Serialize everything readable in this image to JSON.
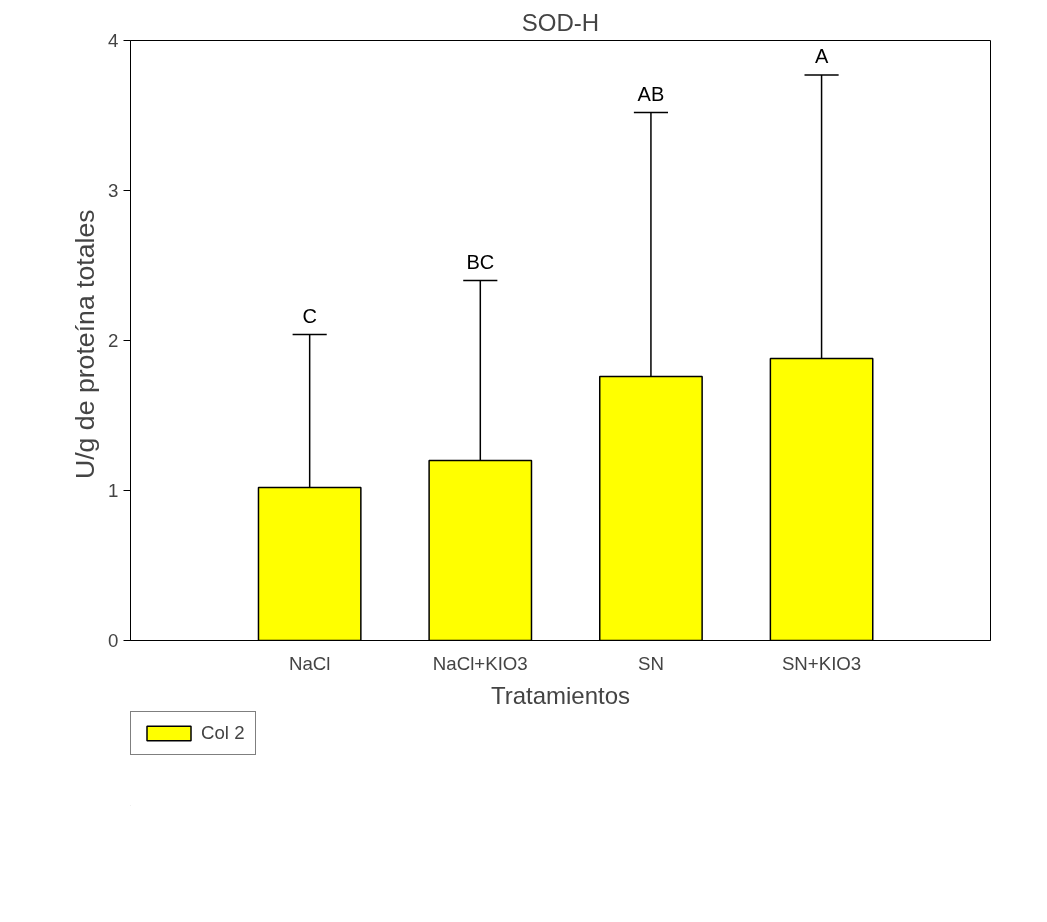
{
  "chart_data": {
    "type": "bar",
    "title": "SOD-H",
    "xlabel": "Tratamientos",
    "ylabel": "U/g de proteína  totales",
    "categories": [
      "NaCl",
      "NaCl+KIO3",
      "SN",
      "SN+KIO3"
    ],
    "series": [
      {
        "name": "Col 2",
        "color": "#ffff00",
        "values": [
          1.02,
          1.2,
          1.76,
          1.88
        ],
        "errors": [
          [
            1.02,
            2.04
          ],
          [
            1.2,
            2.4
          ],
          [
            1.76,
            3.52
          ],
          [
            1.88,
            3.77
          ]
        ]
      }
    ],
    "ylim": [
      0,
      4
    ],
    "yticks": [
      0,
      1,
      2,
      3,
      4
    ],
    "grid": false,
    "legend": "bottom left",
    "annotations": [
      "C",
      "BC",
      "AB",
      "A"
    ]
  }
}
